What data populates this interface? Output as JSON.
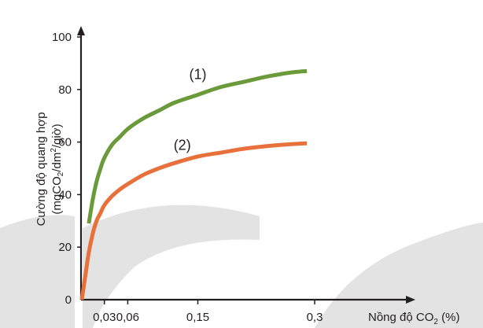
{
  "chart_data": {
    "type": "line",
    "xlabel": "Nồng độ CO",
    "xlabel_sub": "2",
    "xlabel_unit": " (%)",
    "ylabel_line1": "Cường độ quang hợp",
    "ylabel_line2_pre": "(mgCO",
    "ylabel_line2_sub": "2",
    "ylabel_line2_mid": "/dm",
    "ylabel_line2_sup": "2",
    "ylabel_line2_post": "/giờ)",
    "x_ticks": [
      {
        "value": 0.03,
        "label": "0,03"
      },
      {
        "value": 0.06,
        "label": "0,06"
      },
      {
        "value": 0.15,
        "label": "0,15"
      },
      {
        "value": 0.3,
        "label": "0,3"
      }
    ],
    "y_ticks": [
      {
        "value": 0,
        "label": "0"
      },
      {
        "value": 20,
        "label": "20"
      },
      {
        "value": 40,
        "label": "40"
      },
      {
        "value": 60,
        "label": "60"
      },
      {
        "value": 80,
        "label": "80"
      },
      {
        "value": 100,
        "label": "100"
      }
    ],
    "xlim": [
      0,
      0.3
    ],
    "ylim": [
      0,
      100
    ],
    "grid": false,
    "series": [
      {
        "name": "(1)",
        "color": "#6a9a3a",
        "x": [
          0.01,
          0.015,
          0.02,
          0.025,
          0.03,
          0.04,
          0.05,
          0.06,
          0.08,
          0.1,
          0.12,
          0.15,
          0.18,
          0.21,
          0.24,
          0.27,
          0.29
        ],
        "y": [
          29,
          38,
          45,
          50,
          54,
          59,
          62,
          65,
          69,
          72,
          75,
          78,
          81,
          83,
          85,
          86.5,
          87
        ]
      },
      {
        "name": "(2)",
        "color": "#e8703a",
        "x": [
          0.001,
          0.003,
          0.006,
          0.01,
          0.015,
          0.02,
          0.025,
          0.03,
          0.04,
          0.05,
          0.06,
          0.08,
          0.1,
          0.12,
          0.15,
          0.18,
          0.21,
          0.24,
          0.27,
          0.29
        ],
        "y": [
          0,
          4,
          10,
          18,
          25,
          30,
          33,
          36,
          39.5,
          42,
          44,
          47.5,
          50,
          52,
          54.5,
          56,
          57.5,
          58.5,
          59.2,
          59.5
        ]
      }
    ]
  }
}
